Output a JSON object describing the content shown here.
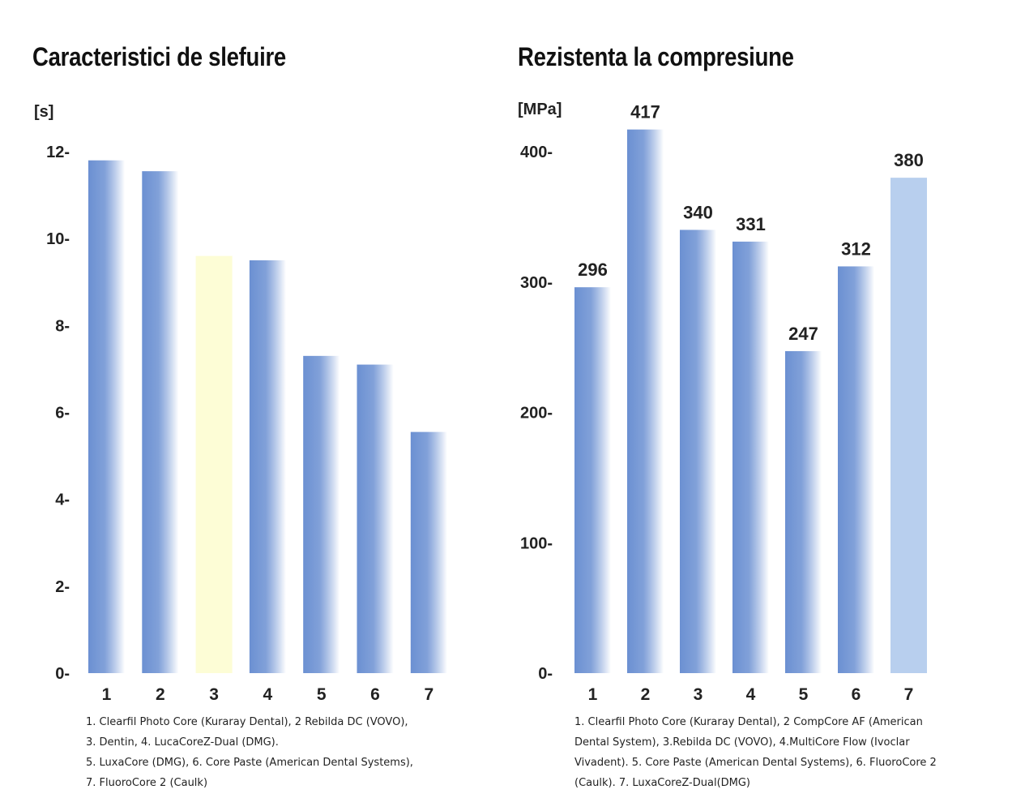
{
  "chart_data": [
    {
      "type": "bar",
      "title": "Caracteristici de slefuire",
      "ylabel": "[s]",
      "xlabel": "",
      "categories": [
        "1",
        "2",
        "3",
        "4",
        "5",
        "6",
        "7"
      ],
      "values": [
        11.8,
        11.55,
        9.6,
        9.5,
        7.3,
        7.1,
        5.55
      ],
      "show_value_labels": false,
      "yticks": [
        0,
        2,
        4,
        6,
        8,
        10,
        12
      ],
      "ytick_labels": [
        "0-",
        "2-",
        "4-",
        "6-",
        "8-",
        "10-",
        "12-"
      ],
      "ylim": [
        0,
        12
      ],
      "highlight_index": 2,
      "highlight_style": "yellow",
      "footnote": [
        "1. Clearfil Photo Core (Kuraray Dental), 2 Rebilda DC (VOVO),",
        "3. Dentin, 4. LucaCoreZ-Dual (DMG).",
        "5. LuxaCore (DMG), 6. Core Paste (American Dental Systems),",
        "7. FluoroCore 2 (Caulk)"
      ]
    },
    {
      "type": "bar",
      "title": "Rezistenta la compresiune",
      "ylabel": "[MPa]",
      "xlabel": "",
      "categories": [
        "1",
        "2",
        "3",
        "4",
        "5",
        "6",
        "7"
      ],
      "values": [
        296,
        417,
        340,
        331,
        247,
        312,
        380
      ],
      "value_labels": [
        "296",
        "417",
        "340",
        "331",
        "247",
        "312",
        "380"
      ],
      "show_value_labels": true,
      "yticks": [
        0,
        100,
        200,
        300,
        400
      ],
      "ytick_labels": [
        "0-",
        "100-",
        "200-",
        "300-",
        "400-"
      ],
      "ylim": [
        0,
        400
      ],
      "highlight_index": 6,
      "highlight_style": "light-blue",
      "footnote": [
        "1. Clearfil Photo Core (Kuraray Dental), 2 CompCore AF (American",
        "Dental System), 3.Rebilda DC (VOVO), 4.MultiCore Flow (Ivoclar",
        "Vivadent). 5. Core Paste (American Dental Systems), 6. FluoroCore 2",
        "(Caulk). 7. LuxaCoreZ-Dual(DMG)"
      ]
    }
  ],
  "colors": {
    "bar_dark": "#6b90d2",
    "bar_light": "#ffffff",
    "highlight_yellow": "#fdfdd6",
    "highlight_blue": "#b8cfee",
    "text": "#222222"
  }
}
